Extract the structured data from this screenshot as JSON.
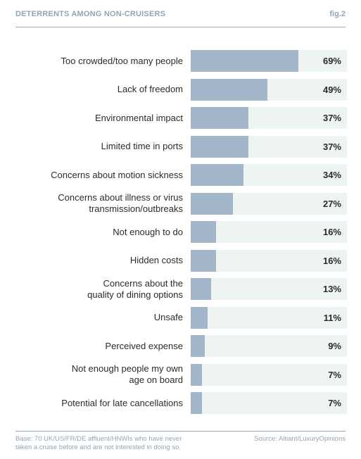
{
  "header": {
    "title": "DETERRENTS AMONG NON-CRUISERS",
    "fig": "fig.2"
  },
  "chart_data": {
    "type": "bar",
    "orientation": "horizontal",
    "categories": [
      "Too crowded/too many people",
      "Lack of freedom",
      "Environmental impact",
      "Limited time in ports",
      "Concerns about motion sickness",
      "Concerns about illness or virus transmission/outbreaks",
      "Not enough to do",
      "Hidden costs",
      "Concerns about the quality of dining options",
      "Unsafe",
      "Perceived expense",
      "Not enough people my own age on board",
      "Potential for late cancellations"
    ],
    "label_lines": [
      [
        "Too crowded/too many people"
      ],
      [
        "Lack of freedom"
      ],
      [
        "Environmental impact"
      ],
      [
        "Limited time in ports"
      ],
      [
        "Concerns about motion sickness"
      ],
      [
        "Concerns about illness or virus",
        "transmission/outbreaks"
      ],
      [
        "Not enough to do"
      ],
      [
        "Hidden costs"
      ],
      [
        "Concerns about the",
        "quality of dining options"
      ],
      [
        "Unsafe"
      ],
      [
        "Perceived expense"
      ],
      [
        "Not enough people my own",
        "age on board"
      ],
      [
        "Potential for late cancellations"
      ]
    ],
    "values": [
      69,
      49,
      37,
      37,
      34,
      27,
      16,
      16,
      13,
      11,
      9,
      7,
      7
    ],
    "value_labels": [
      "69%",
      "49%",
      "37%",
      "37%",
      "34%",
      "27%",
      "16%",
      "16%",
      "13%",
      "11%",
      "9%",
      "7%",
      "7%"
    ],
    "xlim": [
      0,
      100
    ],
    "bar_color": "#a3b5c8",
    "track_color": "#eef4f1"
  },
  "footer": {
    "base_lines": [
      "Base: 70 UK/US/FR/DE affluent/HNWIs who have never",
      "taken a cruise before and are not interested in doing so."
    ],
    "source": "Source: Altiant/LuxuryOpinions"
  }
}
